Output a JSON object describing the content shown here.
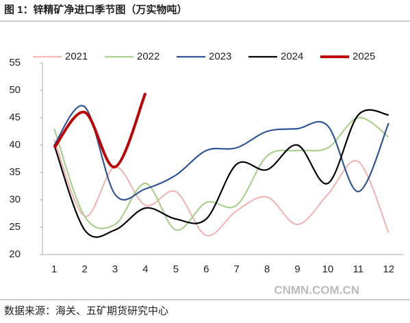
{
  "chart_data": {
    "type": "line",
    "title": "图 1：锌精矿净进口季节图（万实物吨）",
    "source": "数据来源：海关、五矿期货研究中心",
    "watermark": "CNMN.COM.CN",
    "categories": [
      "1",
      "2",
      "3",
      "4",
      "5",
      "6",
      "7",
      "8",
      "9",
      "10",
      "11",
      "12"
    ],
    "series": [
      {
        "name": "2021",
        "color": "#f2b6b6",
        "values": [
          41,
          27,
          36,
          29,
          31.5,
          23.5,
          28,
          30.5,
          25.5,
          31,
          37,
          24
        ]
      },
      {
        "name": "2022",
        "color": "#a9d18e",
        "values": [
          43,
          27,
          25.5,
          33,
          24.5,
          29.5,
          29,
          38,
          39,
          39.5,
          45,
          41.5
        ]
      },
      {
        "name": "2023",
        "color": "#2f5597",
        "values": [
          40,
          47,
          31,
          32,
          34.5,
          39,
          39.5,
          42.5,
          43,
          43.5,
          31.5,
          44
        ]
      },
      {
        "name": "2024",
        "color": "#000000",
        "values": [
          40,
          24.5,
          24.5,
          28.5,
          26.5,
          26.5,
          36.5,
          35.5,
          40,
          33,
          45.5,
          45.5
        ]
      },
      {
        "name": "2025",
        "color": "#c00000",
        "values": [
          39.5,
          46,
          36,
          49.5,
          null,
          null,
          null,
          null,
          null,
          null,
          null,
          null
        ]
      }
    ],
    "ylim": [
      20,
      55
    ],
    "yticks": [
      20,
      25,
      30,
      35,
      40,
      45,
      50,
      55
    ],
    "grid": false,
    "legend": "top"
  }
}
